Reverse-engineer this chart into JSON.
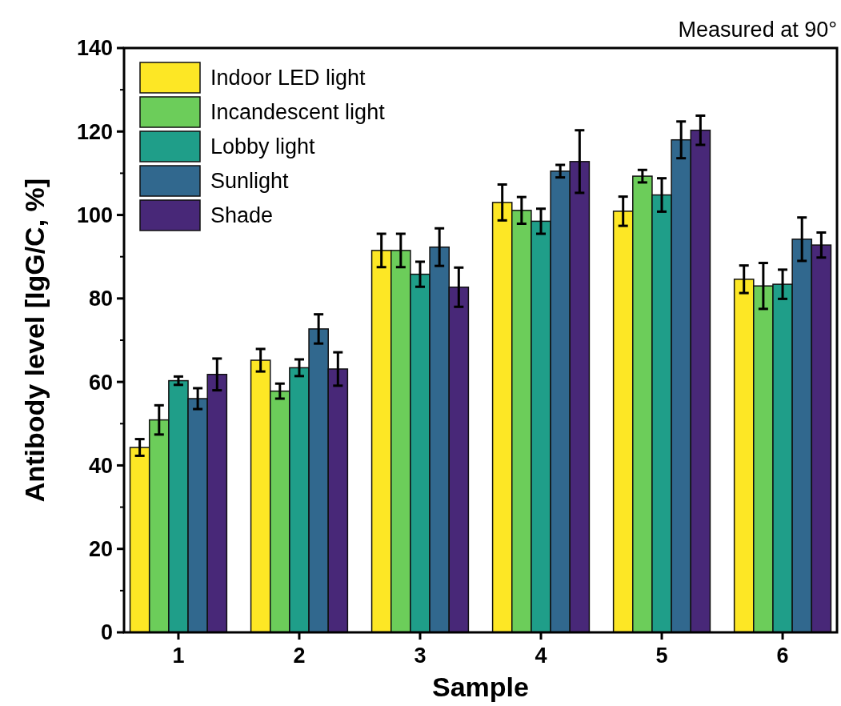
{
  "chart_data": {
    "type": "bar",
    "xlabel": "Sample",
    "ylabel": "Antibody level [IgG/C, %]",
    "annotations": [
      "Measured at 90°"
    ],
    "categories": [
      "1",
      "2",
      "3",
      "4",
      "5",
      "6"
    ],
    "series": [
      {
        "name": "Indoor LED light",
        "color": "#fde725",
        "values": [
          44.3,
          65.2,
          91.5,
          103,
          100.9,
          84.6
        ],
        "errors": [
          2,
          2.7,
          4,
          4.3,
          3.5,
          3.3
        ]
      },
      {
        "name": "Incandescent light",
        "color": "#6ccd5a",
        "values": [
          50.9,
          57.8,
          91.5,
          101.1,
          109.3,
          83
        ],
        "errors": [
          3.5,
          1.8,
          4,
          3.2,
          1.5,
          5.5
        ]
      },
      {
        "name": "Lobby light",
        "color": "#1f9e89",
        "values": [
          60.3,
          63.4,
          85.8,
          98.5,
          104.8,
          83.4
        ],
        "errors": [
          1,
          2,
          3,
          3,
          4,
          3.5
        ]
      },
      {
        "name": "Sunlight",
        "color": "#31688e",
        "values": [
          56,
          72.7,
          92.3,
          110.5,
          118,
          94.2
        ],
        "errors": [
          2.5,
          3.5,
          4.5,
          1.5,
          4.4,
          5.2
        ]
      },
      {
        "name": "Shade",
        "color": "#482878",
        "values": [
          61.8,
          63.1,
          82.7,
          112.8,
          120.3,
          92.8
        ],
        "errors": [
          3.8,
          4,
          4.7,
          7.5,
          3.5,
          3
        ]
      }
    ],
    "ylim": [
      0,
      140
    ],
    "yticks": [
      0,
      20,
      40,
      60,
      80,
      100,
      120,
      140
    ],
    "grid": false,
    "legend": "top left"
  }
}
